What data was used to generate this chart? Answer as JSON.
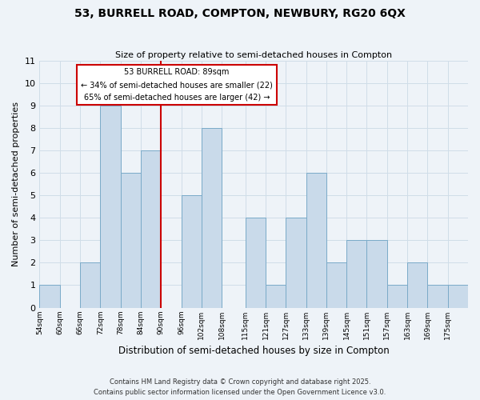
{
  "title": "53, BURRELL ROAD, COMPTON, NEWBURY, RG20 6QX",
  "subtitle": "Size of property relative to semi-detached houses in Compton",
  "xlabel": "Distribution of semi-detached houses by size in Compton",
  "ylabel": "Number of semi-detached properties",
  "bar_edges": [
    54,
    60,
    66,
    72,
    78,
    84,
    90,
    96,
    102,
    108,
    115,
    121,
    127,
    133,
    139,
    145,
    151,
    157,
    163,
    169,
    175,
    181
  ],
  "bar_heights": [
    1,
    0,
    2,
    9,
    6,
    7,
    0,
    5,
    8,
    0,
    4,
    1,
    4,
    6,
    2,
    3,
    3,
    1,
    2,
    1,
    1
  ],
  "tick_labels": [
    "54sqm",
    "60sqm",
    "66sqm",
    "72sqm",
    "78sqm",
    "84sqm",
    "90sqm",
    "96sqm",
    "102sqm",
    "108sqm",
    "115sqm",
    "121sqm",
    "127sqm",
    "133sqm",
    "139sqm",
    "145sqm",
    "151sqm",
    "157sqm",
    "163sqm",
    "169sqm",
    "175sqm"
  ],
  "bar_color": "#c9daea",
  "bar_edge_color": "#7aaac8",
  "vline_x": 90,
  "vline_color": "#cc0000",
  "annotation_title": "53 BURRELL ROAD: 89sqm",
  "annotation_line1": "← 34% of semi-detached houses are smaller (22)",
  "annotation_line2": "65% of semi-detached houses are larger (42) →",
  "annotation_box_color": "#ffffff",
  "annotation_box_edge": "#cc0000",
  "ylim": [
    0,
    11
  ],
  "grid_color": "#d0dde8",
  "footer1": "Contains HM Land Registry data © Crown copyright and database right 2025.",
  "footer2": "Contains public sector information licensed under the Open Government Licence v3.0.",
  "bg_color": "#eef3f8"
}
